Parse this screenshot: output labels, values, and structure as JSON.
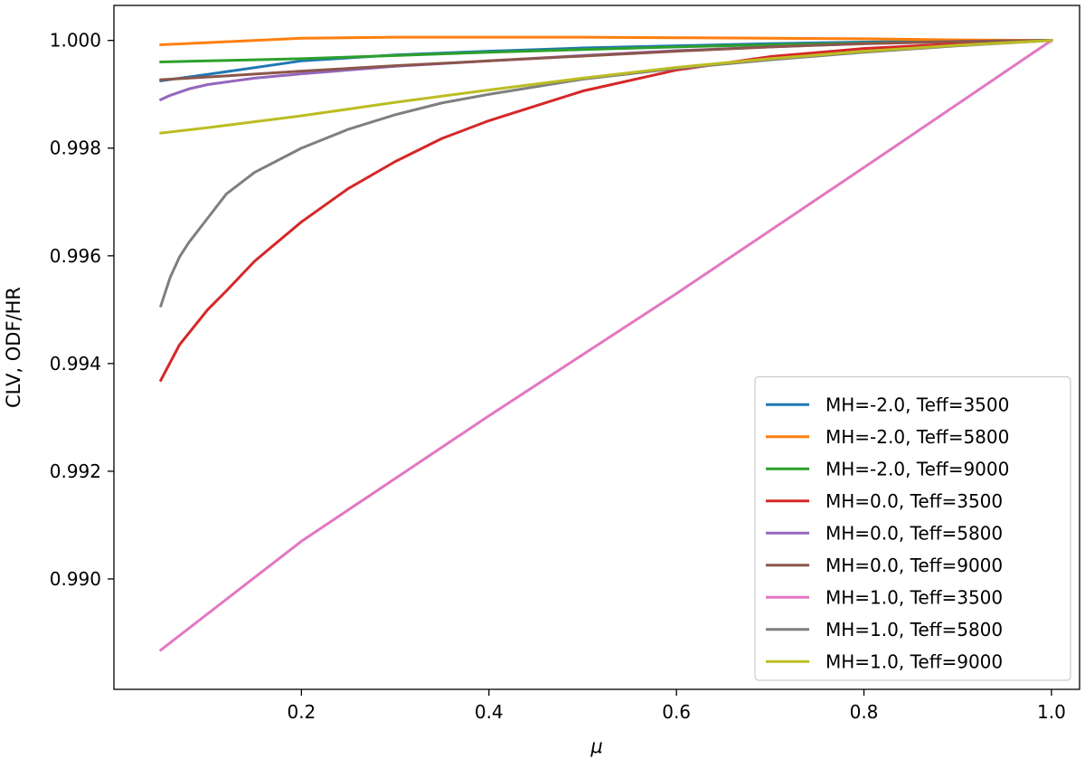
{
  "chart_data": {
    "type": "line",
    "title": "",
    "xlabel": "μ",
    "ylabel": "CLV, ODF/HR",
    "xlim": [
      0.0,
      1.03
    ],
    "ylim": [
      0.98795,
      1.00065
    ],
    "xticks": [
      0.2,
      0.4,
      0.6,
      0.8,
      1.0
    ],
    "xtick_labels": [
      "0.2",
      "0.4",
      "0.6",
      "0.8",
      "1.0"
    ],
    "yticks": [
      0.99,
      0.992,
      0.994,
      0.996,
      0.998,
      1.0
    ],
    "ytick_labels": [
      "0.990",
      "0.992",
      "0.994",
      "0.996",
      "0.998",
      "1.000"
    ],
    "grid": false,
    "legend_position": "lower-right",
    "series": [
      {
        "name": "MH=-2.0, Teff=3500",
        "color": "#1f77b4",
        "x": [
          0.05,
          0.1,
          0.2,
          0.3,
          0.4,
          0.5,
          0.6,
          0.7,
          0.8,
          0.9,
          1.0
        ],
        "y": [
          0.99925,
          0.99937,
          0.99962,
          0.99973,
          0.9998,
          0.99986,
          0.9999,
          0.99994,
          0.99997,
          0.99999,
          1.0
        ]
      },
      {
        "name": "MH=-2.0, Teff=5800",
        "color": "#ff7f0e",
        "x": [
          0.05,
          0.1,
          0.2,
          0.3,
          0.4,
          0.5,
          0.6,
          0.7,
          0.8,
          0.9,
          1.0
        ],
        "y": [
          0.99992,
          0.99996,
          1.00004,
          1.00006,
          1.00006,
          1.00006,
          1.00005,
          1.00004,
          1.00003,
          1.00001,
          1.0
        ]
      },
      {
        "name": "MH=-2.0, Teff=9000",
        "color": "#2ca02c",
        "x": [
          0.05,
          0.1,
          0.2,
          0.3,
          0.4,
          0.5,
          0.6,
          0.7,
          0.8,
          0.9,
          1.0
        ],
        "y": [
          0.9996,
          0.99962,
          0.99966,
          0.99972,
          0.99978,
          0.99983,
          0.99988,
          0.99992,
          0.99995,
          0.99998,
          1.0
        ]
      },
      {
        "name": "MH=0.0, Teff=3500",
        "color": "#d62728",
        "x": [
          0.05,
          0.07,
          0.1,
          0.12,
          0.15,
          0.2,
          0.25,
          0.3,
          0.35,
          0.4,
          0.5,
          0.6,
          0.7,
          0.8,
          0.9,
          1.0
        ],
        "y": [
          0.99369,
          0.99435,
          0.995,
          0.99535,
          0.9959,
          0.99663,
          0.99725,
          0.99775,
          0.99818,
          0.99851,
          0.99906,
          0.99945,
          0.9997,
          0.99985,
          0.99994,
          1.0
        ]
      },
      {
        "name": "MH=0.0, Teff=5800",
        "color": "#9467bd",
        "x": [
          0.05,
          0.06,
          0.08,
          0.1,
          0.15,
          0.2,
          0.3,
          0.4,
          0.5,
          0.6,
          0.7,
          0.8,
          0.9,
          1.0
        ],
        "y": [
          0.9989,
          0.99898,
          0.9991,
          0.99918,
          0.9993,
          0.99938,
          0.99952,
          0.99962,
          0.99972,
          0.99981,
          0.99988,
          0.99994,
          0.99998,
          1.0
        ]
      },
      {
        "name": "MH=0.0, Teff=9000",
        "color": "#8c564b",
        "x": [
          0.05,
          0.1,
          0.2,
          0.3,
          0.4,
          0.5,
          0.6,
          0.7,
          0.8,
          0.9,
          1.0
        ],
        "y": [
          0.99927,
          0.99932,
          0.99943,
          0.99953,
          0.99962,
          0.99971,
          0.9998,
          0.99988,
          0.99994,
          0.99998,
          1.0
        ]
      },
      {
        "name": "MH=1.0, Teff=3500",
        "color": "#e377c2",
        "x": [
          0.05,
          0.2,
          0.4,
          0.6,
          0.8,
          1.0
        ],
        "y": [
          0.98868,
          0.9907,
          0.99303,
          0.9953,
          0.99764,
          1.0
        ]
      },
      {
        "name": "MH=1.0, Teff=5800",
        "color": "#7f7f7f",
        "x": [
          0.05,
          0.06,
          0.07,
          0.08,
          0.1,
          0.12,
          0.15,
          0.2,
          0.25,
          0.3,
          0.35,
          0.4,
          0.5,
          0.6,
          0.7,
          0.8,
          0.9,
          1.0
        ],
        "y": [
          0.99507,
          0.9956,
          0.99598,
          0.99625,
          0.9967,
          0.99715,
          0.99755,
          0.998,
          0.99835,
          0.99862,
          0.99884,
          0.999,
          0.99928,
          0.99948,
          0.99964,
          0.99978,
          0.9999,
          1.0
        ]
      },
      {
        "name": "MH=1.0, Teff=9000",
        "color": "#bcbd22",
        "x": [
          0.05,
          0.1,
          0.2,
          0.3,
          0.4,
          0.5,
          0.6,
          0.7,
          0.8,
          0.9,
          1.0
        ],
        "y": [
          0.99828,
          0.99838,
          0.9986,
          0.99885,
          0.99908,
          0.9993,
          0.9995,
          0.99966,
          0.9998,
          0.99991,
          1.0
        ]
      }
    ]
  }
}
